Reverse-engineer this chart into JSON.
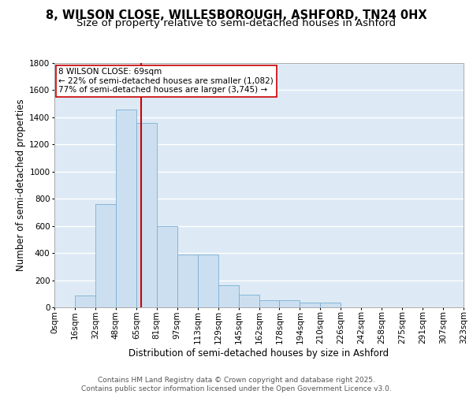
{
  "title_line1": "8, WILSON CLOSE, WILLESBOROUGH, ASHFORD, TN24 0HX",
  "title_line2": "Size of property relative to semi-detached houses in Ashford",
  "xlabel": "Distribution of semi-detached houses by size in Ashford",
  "ylabel": "Number of semi-detached properties",
  "bar_color": "#ccdff0",
  "bar_edge_color": "#7aafd4",
  "background_color": "#ddeaf5",
  "grid_color": "#ffffff",
  "bin_labels": [
    "0sqm",
    "16sqm",
    "32sqm",
    "48sqm",
    "65sqm",
    "81sqm",
    "97sqm",
    "113sqm",
    "129sqm",
    "145sqm",
    "162sqm",
    "178sqm",
    "194sqm",
    "210sqm",
    "226sqm",
    "242sqm",
    "258sqm",
    "275sqm",
    "291sqm",
    "307sqm",
    "323sqm"
  ],
  "bar_heights": [
    0,
    90,
    760,
    1460,
    1360,
    600,
    390,
    390,
    160,
    95,
    50,
    50,
    35,
    35,
    0,
    0,
    0,
    0,
    0,
    0
  ],
  "ylim": [
    0,
    1800
  ],
  "yticks": [
    0,
    200,
    400,
    600,
    800,
    1000,
    1200,
    1400,
    1600,
    1800
  ],
  "vline_x": 4.25,
  "vline_color": "#cc0000",
  "annotation_title": "8 WILSON CLOSE: 69sqm",
  "annotation_line1": "← 22% of semi-detached houses are smaller (1,082)",
  "annotation_line2": "77% of semi-detached houses are larger (3,745) →",
  "annotation_box_color": "#ffffff",
  "annotation_box_edge": "#cc0000",
  "footer_line1": "Contains HM Land Registry data © Crown copyright and database right 2025.",
  "footer_line2": "Contains public sector information licensed under the Open Government Licence v3.0.",
  "title_fontsize": 10.5,
  "subtitle_fontsize": 9.5,
  "axis_label_fontsize": 8.5,
  "tick_fontsize": 7.5,
  "annotation_fontsize": 7.5,
  "footer_fontsize": 6.5
}
